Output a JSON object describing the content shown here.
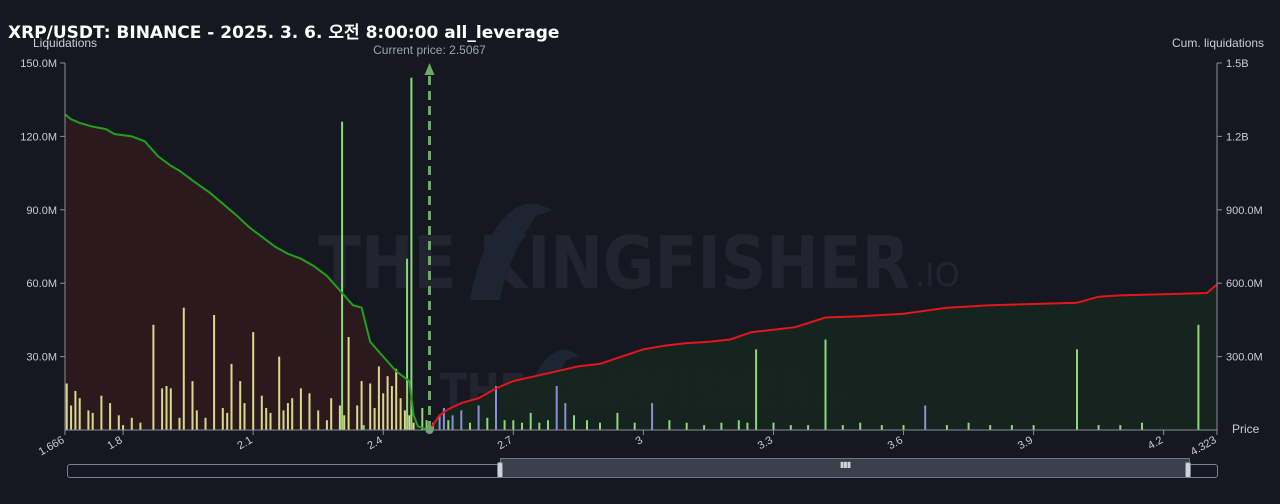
{
  "header": {
    "title": "XRP/USDT: BINANCE - 2025. 3. 6. 오전 8:00:00 all_leverage",
    "left_axis_label": "Liquidations",
    "right_axis_label": "Cum. liquidations",
    "price_axis_label": "Price",
    "current_price_label": "Current price: 2.5067"
  },
  "watermark": {
    "text_main": "THE KINGFISHER",
    "text_suffix": ".IO"
  },
  "colors": {
    "background": "#161821",
    "short_cum_line": "#1fa11f",
    "long_cum_line": "#e3161b",
    "short_fill": "#2d1a1e",
    "long_fill": "#15261e",
    "bar_yellow": "#d8d98c",
    "bar_green": "#8fd77a",
    "bar_blue": "#8c8fd8",
    "current_price": "#6fa86a",
    "axis": "#8a8d98"
  },
  "chart_data": {
    "type": "bar",
    "title": "XRP/USDT: BINANCE - 2025. 3. 6. 오전 8:00:00 all_leverage",
    "current_price": 2.5067,
    "x_range": [
      1.666,
      4.323
    ],
    "x_ticks": [
      "1.666",
      "1.8",
      "2.1",
      "2.4",
      "2.7",
      "3",
      "3.3",
      "3.6",
      "3.9",
      "4.2",
      "4.323"
    ],
    "x_tick_values": [
      1.666,
      1.8,
      2.1,
      2.4,
      2.7,
      3.0,
      3.3,
      3.6,
      3.9,
      4.2,
      4.323
    ],
    "left_axis": {
      "label": "Liquidations",
      "range": [
        0,
        150000000
      ],
      "ticks": [
        "150.0M",
        "120.0M",
        "90.0M",
        "60.0M",
        "30.0M"
      ],
      "tick_values": [
        150000000,
        120000000,
        90000000,
        60000000,
        30000000
      ]
    },
    "right_axis": {
      "label": "Cum. liquidations",
      "range": [
        0,
        1500000000
      ],
      "ticks": [
        "1.5B",
        "1.2B",
        "900.0M",
        "600.0M",
        "300.0M"
      ],
      "tick_values": [
        1500000000,
        1200000000,
        900000000,
        600000000,
        300000000
      ]
    },
    "bars": [
      [
        1.67,
        19,
        "y"
      ],
      [
        1.68,
        10,
        "y"
      ],
      [
        1.69,
        16,
        "y"
      ],
      [
        1.7,
        13,
        "y"
      ],
      [
        1.72,
        8,
        "y"
      ],
      [
        1.73,
        7,
        "y"
      ],
      [
        1.75,
        14,
        "y"
      ],
      [
        1.77,
        11,
        "y"
      ],
      [
        1.79,
        6,
        "y"
      ],
      [
        1.8,
        2,
        "y"
      ],
      [
        1.82,
        5,
        "y"
      ],
      [
        1.84,
        3,
        "y"
      ],
      [
        1.87,
        43,
        "y"
      ],
      [
        1.89,
        17,
        "y"
      ],
      [
        1.9,
        18,
        "y"
      ],
      [
        1.91,
        17,
        "y"
      ],
      [
        1.93,
        5,
        "y"
      ],
      [
        1.94,
        50,
        "y"
      ],
      [
        1.96,
        20,
        "y"
      ],
      [
        1.97,
        8,
        "y"
      ],
      [
        1.99,
        5,
        "y"
      ],
      [
        2.01,
        47,
        "y"
      ],
      [
        2.03,
        9,
        "y"
      ],
      [
        2.04,
        7,
        "y"
      ],
      [
        2.05,
        27,
        "y"
      ],
      [
        2.07,
        20,
        "y"
      ],
      [
        2.08,
        11,
        "y"
      ],
      [
        2.1,
        40,
        "y"
      ],
      [
        2.12,
        14,
        "y"
      ],
      [
        2.13,
        9,
        "y"
      ],
      [
        2.14,
        7,
        "y"
      ],
      [
        2.16,
        30,
        "y"
      ],
      [
        2.17,
        8,
        "y"
      ],
      [
        2.18,
        11,
        "y"
      ],
      [
        2.19,
        13,
        "y"
      ],
      [
        2.21,
        17,
        "y"
      ],
      [
        2.23,
        15,
        "y"
      ],
      [
        2.25,
        8,
        "y"
      ],
      [
        2.27,
        4,
        "y"
      ],
      [
        2.28,
        13,
        "y"
      ],
      [
        2.3,
        10,
        "y"
      ],
      [
        2.31,
        6,
        "y"
      ],
      [
        2.32,
        38,
        "y"
      ],
      [
        2.34,
        10,
        "y"
      ],
      [
        2.35,
        20,
        "y"
      ],
      [
        2.37,
        19,
        "y"
      ],
      [
        2.38,
        9,
        "y"
      ],
      [
        2.39,
        26,
        "y"
      ],
      [
        2.4,
        15,
        "y"
      ],
      [
        2.41,
        22,
        "y"
      ],
      [
        2.42,
        18,
        "y"
      ],
      [
        2.43,
        25,
        "y"
      ],
      [
        2.44,
        13,
        "y"
      ],
      [
        2.45,
        8,
        "y"
      ],
      [
        2.46,
        6,
        "y"
      ],
      [
        2.47,
        3,
        "y"
      ],
      [
        2.305,
        126,
        "g"
      ],
      [
        2.355,
        2,
        "g"
      ],
      [
        2.455,
        70,
        "g"
      ],
      [
        2.465,
        144,
        "g"
      ],
      [
        2.49,
        9,
        "g"
      ],
      [
        2.5,
        4,
        "g"
      ],
      [
        2.515,
        3,
        "b"
      ],
      [
        2.53,
        6,
        "b"
      ],
      [
        2.54,
        9,
        "b"
      ],
      [
        2.55,
        4,
        "g"
      ],
      [
        2.56,
        6,
        "b"
      ],
      [
        2.58,
        8,
        "b"
      ],
      [
        2.6,
        3,
        "g"
      ],
      [
        2.62,
        10,
        "b"
      ],
      [
        2.64,
        5,
        "g"
      ],
      [
        2.66,
        18,
        "b"
      ],
      [
        2.68,
        4,
        "g"
      ],
      [
        2.7,
        4,
        "g"
      ],
      [
        2.72,
        3,
        "g"
      ],
      [
        2.74,
        7,
        "g"
      ],
      [
        2.76,
        3,
        "g"
      ],
      [
        2.78,
        4,
        "g"
      ],
      [
        2.8,
        18,
        "b"
      ],
      [
        2.82,
        11,
        "b"
      ],
      [
        2.84,
        6,
        "g"
      ],
      [
        2.87,
        4,
        "g"
      ],
      [
        2.9,
        3,
        "g"
      ],
      [
        2.94,
        7,
        "g"
      ],
      [
        2.98,
        3,
        "g"
      ],
      [
        3.02,
        11,
        "b"
      ],
      [
        3.06,
        4,
        "g"
      ],
      [
        3.1,
        3,
        "g"
      ],
      [
        3.14,
        2,
        "g"
      ],
      [
        3.18,
        3,
        "g"
      ],
      [
        3.22,
        4,
        "g"
      ],
      [
        3.24,
        3,
        "g"
      ],
      [
        3.26,
        33,
        "g"
      ],
      [
        3.3,
        3,
        "g"
      ],
      [
        3.34,
        2,
        "g"
      ],
      [
        3.38,
        2,
        "g"
      ],
      [
        3.42,
        37,
        "g"
      ],
      [
        3.46,
        2,
        "g"
      ],
      [
        3.5,
        3,
        "g"
      ],
      [
        3.55,
        2,
        "g"
      ],
      [
        3.6,
        2,
        "g"
      ],
      [
        3.65,
        10,
        "b"
      ],
      [
        3.7,
        2,
        "g"
      ],
      [
        3.75,
        3,
        "g"
      ],
      [
        3.8,
        2,
        "g"
      ],
      [
        3.85,
        2,
        "g"
      ],
      [
        3.9,
        2,
        "g"
      ],
      [
        4.0,
        33,
        "g"
      ],
      [
        4.05,
        2,
        "g"
      ],
      [
        4.1,
        2,
        "g"
      ],
      [
        4.15,
        3,
        "g"
      ],
      [
        4.28,
        43,
        "g"
      ]
    ],
    "series": [
      {
        "values_m": [
          [
            1.666,
            1290
          ],
          [
            1.68,
            1270
          ],
          [
            1.7,
            1255
          ],
          [
            1.73,
            1240
          ],
          [
            1.76,
            1230
          ],
          [
            1.78,
            1210
          ],
          [
            1.82,
            1200
          ],
          [
            1.85,
            1180
          ],
          [
            1.88,
            1120
          ],
          [
            1.91,
            1080
          ],
          [
            1.93,
            1060
          ],
          [
            1.96,
            1020
          ],
          [
            2.0,
            970
          ],
          [
            2.03,
            925
          ],
          [
            2.06,
            880
          ],
          [
            2.09,
            830
          ],
          [
            2.12,
            790
          ],
          [
            2.15,
            750
          ],
          [
            2.18,
            720
          ],
          [
            2.21,
            700
          ],
          [
            2.24,
            670
          ],
          [
            2.27,
            630
          ],
          [
            2.3,
            570
          ],
          [
            2.33,
            510
          ],
          [
            2.35,
            500
          ],
          [
            2.37,
            360
          ],
          [
            2.4,
            300
          ],
          [
            2.43,
            240
          ],
          [
            2.46,
            200
          ],
          [
            2.47,
            60
          ],
          [
            2.48,
            15
          ],
          [
            2.5067,
            0
          ]
        ]
      },
      {
        "values_m": [
          [
            2.5067,
            0
          ],
          [
            2.53,
            60
          ],
          [
            2.55,
            85
          ],
          [
            2.58,
            110
          ],
          [
            2.62,
            130
          ],
          [
            2.66,
            170
          ],
          [
            2.7,
            200
          ],
          [
            2.75,
            220
          ],
          [
            2.8,
            240
          ],
          [
            2.85,
            260
          ],
          [
            2.9,
            270
          ],
          [
            2.95,
            300
          ],
          [
            3.0,
            330
          ],
          [
            3.05,
            345
          ],
          [
            3.1,
            355
          ],
          [
            3.15,
            360
          ],
          [
            3.2,
            370
          ],
          [
            3.25,
            400
          ],
          [
            3.3,
            410
          ],
          [
            3.35,
            420
          ],
          [
            3.42,
            460
          ],
          [
            3.5,
            465
          ],
          [
            3.6,
            475
          ],
          [
            3.7,
            500
          ],
          [
            3.8,
            510
          ],
          [
            3.9,
            515
          ],
          [
            4.0,
            520
          ],
          [
            4.05,
            545
          ],
          [
            4.1,
            550
          ],
          [
            4.2,
            555
          ],
          [
            4.3,
            560
          ],
          [
            4.323,
            595
          ]
        ]
      }
    ]
  }
}
